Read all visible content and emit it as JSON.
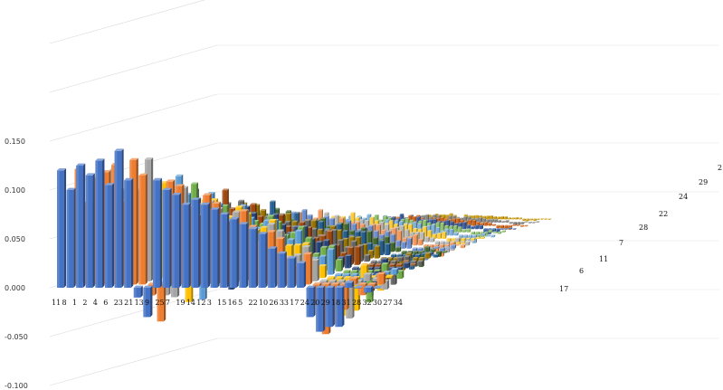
{
  "chart_data": {
    "type": "bar",
    "subtype": "3d-column",
    "title": "",
    "xlabel": "",
    "ylabel": "",
    "grid": true,
    "legend": "none",
    "ylim": [
      -0.1,
      0.2
    ],
    "y_ticks": [
      "0.150",
      "0.100",
      "0.050",
      "0.000",
      "-0.050",
      "-0.100"
    ],
    "categories": [
      "11",
      "8",
      "1",
      "2",
      "4",
      "6",
      "23",
      "21",
      "13",
      "9",
      "25",
      "7",
      "19",
      "14",
      "12",
      "3",
      "15",
      "16",
      "5",
      "22",
      "10",
      "26",
      "33",
      "17",
      "24",
      "20",
      "29",
      "18",
      "31",
      "28",
      "32",
      "30",
      "27",
      "34"
    ],
    "depth_labels": [
      "17",
      "6",
      "11",
      "7",
      "28",
      "22",
      "24",
      "29",
      "2"
    ],
    "depth_colors": [
      "#4472C4",
      "#ED7D31",
      "#A5A5A5",
      "#FFC000",
      "#5B9BD5",
      "#70AD47",
      "#264478",
      "#9E480E",
      "#636363",
      "#997300",
      "#255E91",
      "#43682B",
      "#698ED0",
      "#F1975A",
      "#B7B7B7",
      "#FFCD33",
      "#7CAFDD",
      "#8CC168",
      "#335AA1",
      "#D26012",
      "#848484",
      "#CC9A00"
    ],
    "front_values": [
      0.12,
      0.1,
      0.125,
      0.115,
      0.13,
      0.105,
      0.14,
      0.11,
      -0.01,
      -0.03,
      0.11,
      0.1,
      0.095,
      0.085,
      0.09,
      0.085,
      0.08,
      0.075,
      0.07,
      0.065,
      0.06,
      0.055,
      0.04,
      0.035,
      0.03,
      0.025,
      -0.03,
      -0.045,
      -0.04,
      -0.04,
      0.005,
      0.0,
      -0.005,
      0.0
    ]
  }
}
